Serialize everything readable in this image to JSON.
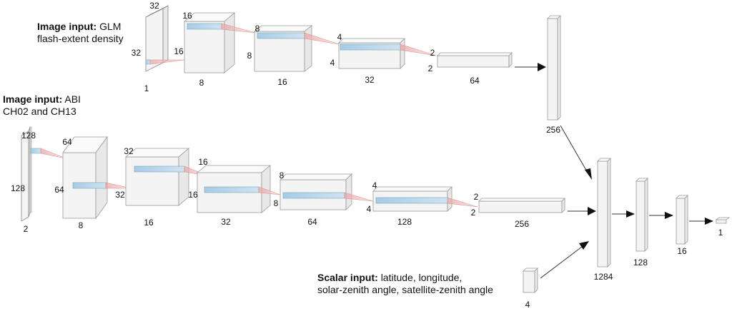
{
  "inputs": {
    "glm": {
      "label_bold": "Image input:",
      "line1_rest": "GLM",
      "line2": "flash-extent density"
    },
    "abi": {
      "label_bold": "Image input:",
      "line1_rest": "ABI",
      "line2": "CH02 and CH13"
    },
    "scalar": {
      "label_bold": "Scalar input:",
      "line1_rest": "latitude, longitude,",
      "line2": "solar-zenith angle, satellite-zenith angle"
    }
  },
  "glm_branch": {
    "blocks": [
      {
        "size": "32",
        "channels": "1"
      },
      {
        "size": "16",
        "channels": "8"
      },
      {
        "size": "8",
        "channels": "16"
      },
      {
        "size": "4",
        "channels": "32"
      },
      {
        "size": "2",
        "channels": "64"
      }
    ],
    "dense": "256"
  },
  "abi_branch": {
    "blocks": [
      {
        "size": "128",
        "channels": "2"
      },
      {
        "size": "64",
        "channels": "8"
      },
      {
        "size": "32",
        "channels": "16"
      },
      {
        "size": "16",
        "channels": "32"
      },
      {
        "size": "8",
        "channels": "64"
      },
      {
        "size": "4",
        "channels": "128"
      },
      {
        "size": "2",
        "channels": "256"
      }
    ]
  },
  "scalar_branch": {
    "units": "4"
  },
  "head": {
    "layers": [
      "1284",
      "128",
      "16",
      "1"
    ]
  }
}
